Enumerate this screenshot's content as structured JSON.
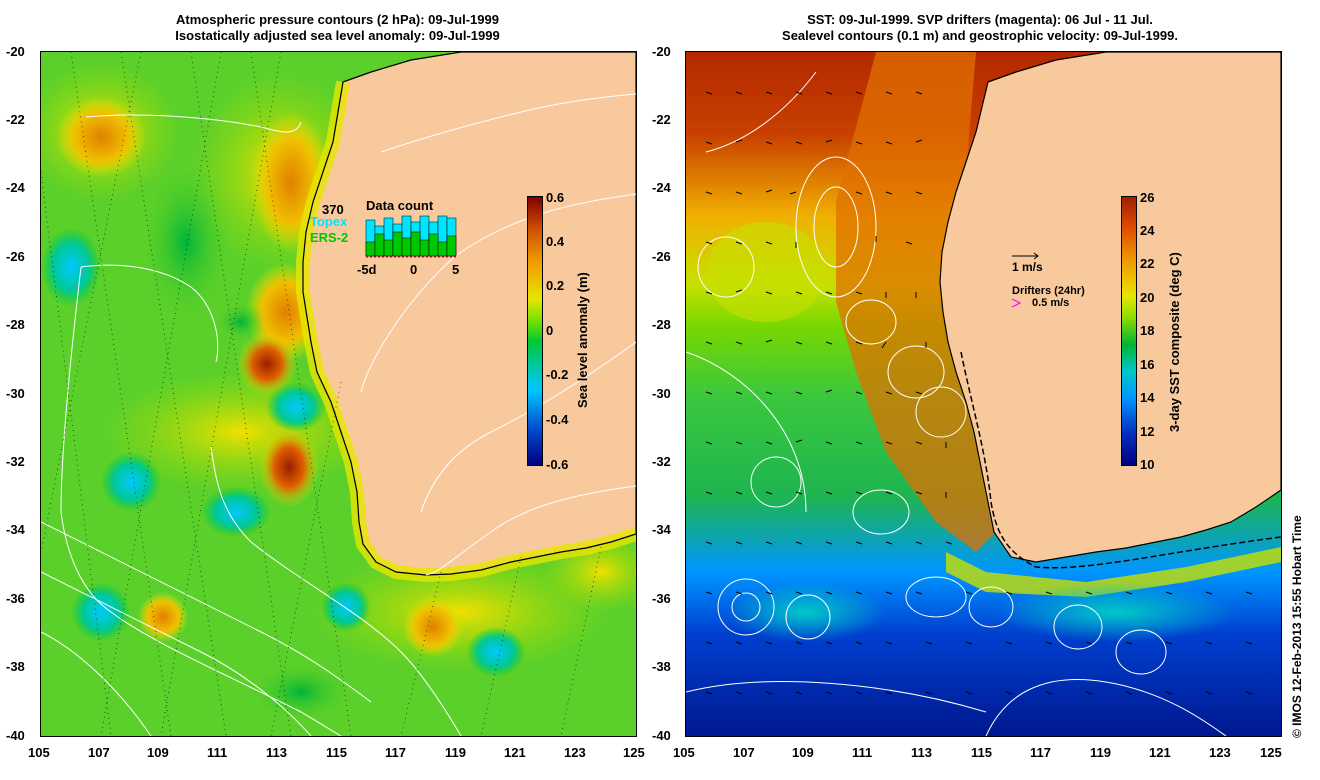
{
  "left_panel": {
    "title_line1": "Atmospheric pressure contours (2 hPa): 09-Jul-1999",
    "title_line2": "Isostatically adjusted sea level anomaly: 09-Jul-1999",
    "lat_ticks": [
      "-20",
      "-22",
      "-24",
      "-26",
      "-28",
      "-30",
      "-32",
      "-34",
      "-36",
      "-38",
      "-40"
    ],
    "lon_ticks": [
      "105",
      "107",
      "109",
      "111",
      "113",
      "115",
      "117",
      "119",
      "121",
      "123",
      "125"
    ],
    "colorbar": {
      "title": "Sea level anomaly (m)",
      "labels": [
        "0.6",
        "0.4",
        "0.2",
        "0",
        "-0.2",
        "-0.4",
        "-0.6"
      ],
      "range": [
        -0.6,
        0.6
      ]
    },
    "data_count": {
      "number": "370",
      "topex_label": "Topex",
      "ers_label": "ERS-2",
      "title": "Data count",
      "axis_labels": [
        "-5d",
        "0",
        "5"
      ],
      "topex_color": "#00e5ff",
      "ers_color": "#00c800"
    }
  },
  "right_panel": {
    "title_line1": "SST: 09-Jul-1999. SVP drifters (magenta): 06 Jul - 11 Jul.",
    "title_line2": "Sealevel contours (0.1 m) and geostrophic velocity: 09-Jul-1999.",
    "lat_ticks": [
      "-20",
      "-22",
      "-24",
      "-26",
      "-28",
      "-30",
      "-32",
      "-34",
      "-36",
      "-38",
      "-40"
    ],
    "lon_ticks": [
      "105",
      "107",
      "109",
      "111",
      "113",
      "115",
      "117",
      "119",
      "121",
      "123",
      "125"
    ],
    "colorbar": {
      "title": "3-day SST composite (deg C)",
      "labels": [
        "26",
        "24",
        "22",
        "20",
        "18",
        "16",
        "14",
        "12",
        "10"
      ],
      "range": [
        10,
        26
      ]
    },
    "velocity_legend": "1 m/s",
    "drifters_legend": "Drifters (24hr)",
    "drifters_speed": "0.5 m/s",
    "drifter_color": "#ff00ff"
  },
  "credit": "© IMOS 12-Feb-2013 15:55 Hobart Time",
  "colors": {
    "land": "#f9c99e",
    "sla_scale": [
      "#000080",
      "#0050d0",
      "#00c8ff",
      "#00c832",
      "#7ae000",
      "#e6e600",
      "#f0a000",
      "#d05000",
      "#800000"
    ],
    "sst_scale": [
      "#000080",
      "#0030c0",
      "#0096ff",
      "#00c8c8",
      "#00b432",
      "#8cdc00",
      "#e6e600",
      "#f0a000",
      "#e05000",
      "#a01e00"
    ]
  }
}
